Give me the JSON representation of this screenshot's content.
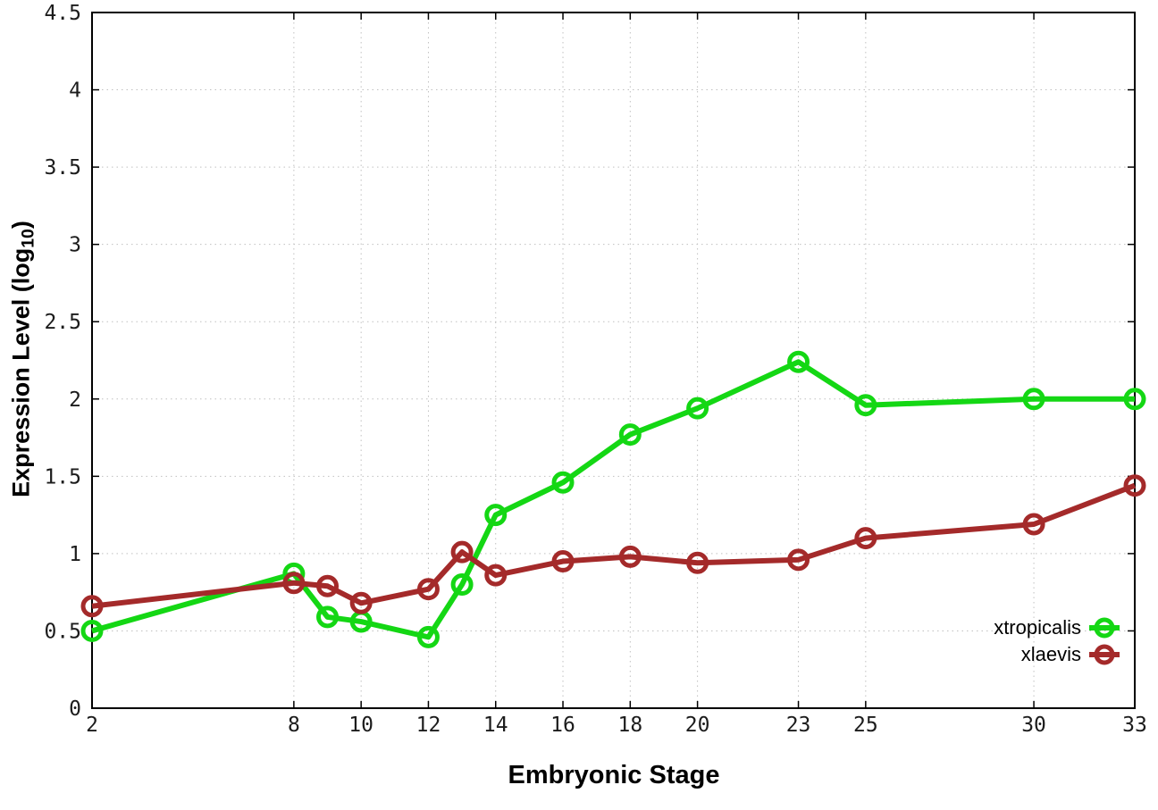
{
  "figure": {
    "background": "#ffffff"
  },
  "chart_data": {
    "type": "line",
    "title": "",
    "xlabel": "Embryonic Stage",
    "ylabel": "Expression Level (log10)",
    "ylabel_parts": {
      "main": "Expression Level (log",
      "sub": "10",
      "end": ")"
    },
    "x": [
      2,
      8,
      9,
      10,
      12,
      13,
      14,
      16,
      18,
      20,
      23,
      25,
      30,
      33
    ],
    "series": [
      {
        "name": "xtropicalis",
        "color": "#14d714",
        "values": [
          0.5,
          0.87,
          0.59,
          0.56,
          0.46,
          0.8,
          1.25,
          1.46,
          1.77,
          1.94,
          2.24,
          1.96,
          2.0,
          2.0
        ]
      },
      {
        "name": "xlaevis",
        "color": "#a42a2a",
        "values": [
          0.66,
          0.81,
          0.79,
          0.68,
          0.77,
          1.01,
          0.86,
          0.95,
          0.98,
          0.94,
          0.96,
          1.1,
          1.19,
          1.44
        ]
      }
    ],
    "xlim": [
      2,
      33
    ],
    "ylim": [
      0,
      4.5
    ],
    "x_ticks": [
      2,
      8,
      10,
      12,
      14,
      16,
      18,
      20,
      23,
      25,
      30,
      33
    ],
    "x_tick_labels": [
      "2",
      "8",
      "10",
      "12",
      "14",
      "16",
      "18",
      "20",
      "23",
      "25",
      "30",
      "33"
    ],
    "y_ticks": [
      0,
      0.5,
      1,
      1.5,
      2,
      2.5,
      3,
      3.5,
      4,
      4.5
    ],
    "y_tick_labels": [
      "0",
      "0.5",
      "1",
      "1.5",
      "2",
      "2.5",
      "3",
      "3.5",
      "4",
      "4.5"
    ],
    "grid": true,
    "legend_position": "inside-bottom-right",
    "colors": {
      "axis": "#000000",
      "grid": "#c0c0c0",
      "tick_label": "#1c1c1c"
    }
  }
}
